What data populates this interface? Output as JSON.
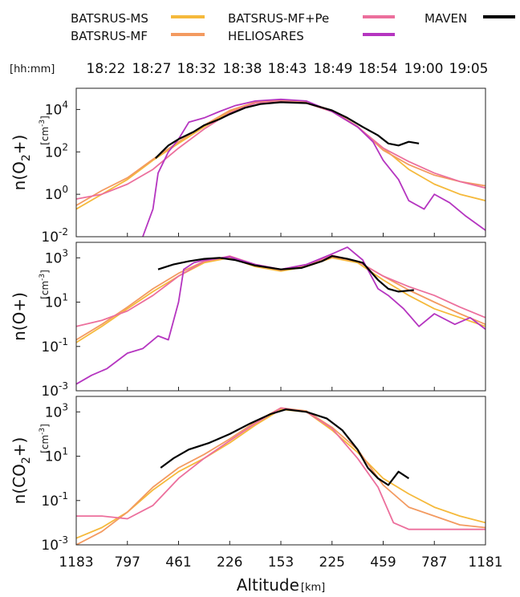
{
  "chart_data": {
    "type": "line",
    "legend": {
      "placement": "top",
      "entries": [
        {
          "name": "BATSRUS-MS",
          "color": "#f5b93b"
        },
        {
          "name": "BATSRUS-MF",
          "color": "#f39a60"
        },
        {
          "name": "BATSRUS-MF+Pe",
          "color": "#ec6f9c"
        },
        {
          "name": "HELIOSARES",
          "color": "#b535c0"
        },
        {
          "name": "MAVEN",
          "color": "#000000"
        }
      ]
    },
    "time_axis": {
      "label": "[hh:mm]",
      "ticks": [
        "18:22",
        "18:27",
        "18:32",
        "18:38",
        "18:43",
        "18:49",
        "18:54",
        "19:00",
        "19:05"
      ]
    },
    "x_axis": {
      "label": "Altitude",
      "unit": "[km]",
      "ticks": [
        "1183",
        "797",
        "461",
        "226",
        "153",
        "225",
        "459",
        "787",
        "1181"
      ]
    },
    "yscale": "log",
    "panels": [
      {
        "ylabel_html": "n(O₂+)",
        "ylabel_parts": [
          "n(O",
          "2",
          "+)"
        ],
        "unit_parts": [
          "[cm",
          "-3",
          "]"
        ],
        "ylim": [
          0.01,
          100000
        ],
        "yticks": [
          {
            "value": 0.01,
            "base": "10",
            "exp": "-2"
          },
          {
            "value": 1,
            "base": "10",
            "exp": "0"
          },
          {
            "value": 100,
            "base": "10",
            "exp": "2"
          },
          {
            "value": 10000,
            "base": "10",
            "exp": "4"
          }
        ],
        "series": [
          {
            "name": "BATSRUS-MS",
            "x": [
              0,
              0.5,
              1,
              1.5,
              2,
              2.5,
              3,
              3.5,
              4,
              4.5,
              5,
              5.5,
              6,
              6.5,
              7,
              7.5,
              8
            ],
            "y": [
              0.2,
              1,
              5,
              40,
              250,
              1500,
              8000,
              20000,
              25000,
              20000,
              8000,
              1500,
              150,
              15,
              3,
              1,
              0.5
            ]
          },
          {
            "name": "BATSRUS-MF",
            "x": [
              0,
              0.5,
              1,
              1.5,
              2,
              2.5,
              3,
              3.5,
              4,
              4.5,
              5,
              5.5,
              6,
              6.5,
              7,
              7.5,
              8
            ],
            "y": [
              0.3,
              1.5,
              6,
              45,
              300,
              1800,
              9000,
              22000,
              27000,
              22000,
              9000,
              1600,
              120,
              25,
              8,
              4,
              2.5
            ]
          },
          {
            "name": "BATSRUS-MF+Pe",
            "x": [
              0,
              0.5,
              1,
              1.5,
              2,
              2.5,
              3,
              3.5,
              4,
              4.5,
              5,
              5.5,
              6,
              6.5,
              7,
              7.5,
              8
            ],
            "y": [
              0.6,
              1,
              3,
              15,
              150,
              1200,
              7000,
              20000,
              24000,
              20000,
              8000,
              1500,
              150,
              35,
              10,
              4,
              2
            ]
          },
          {
            "name": "HELIOSARES",
            "x": [
              1.3,
              1.5,
              1.6,
              1.8,
              2.0,
              2.2,
              2.5,
              2.8,
              3.1,
              3.5,
              4.0,
              4.5,
              5.0,
              5.5,
              5.8,
              6.0,
              6.3,
              6.5,
              6.8,
              7.0,
              7.3,
              7.6,
              8.0
            ],
            "y": [
              0.01,
              0.2,
              10,
              100,
              400,
              2500,
              4000,
              8000,
              15000,
              25000,
              30000,
              25000,
              8000,
              1500,
              300,
              40,
              5,
              0.5,
              0.2,
              1,
              0.4,
              0.1,
              0.02
            ]
          },
          {
            "name": "MAVEN",
            "x": [
              1.55,
              1.8,
              2.0,
              2.3,
              2.5,
              2.8,
              3.0,
              3.3,
              3.6,
              4.0,
              4.5,
              5.0,
              5.3,
              5.6,
              5.9,
              6.1,
              6.3,
              6.5,
              6.7
            ],
            "y": [
              50,
              200,
              400,
              900,
              1800,
              3500,
              6000,
              12000,
              18000,
              22000,
              20000,
              9000,
              4000,
              1500,
              600,
              250,
              200,
              300,
              250
            ]
          }
        ]
      },
      {
        "ylabel_html": "n(O+)",
        "ylabel_parts": [
          "n(O+)",
          "",
          ""
        ],
        "unit_parts": [
          "[cm",
          "-3",
          "]"
        ],
        "ylim": [
          0.001,
          5000
        ],
        "yticks": [
          {
            "value": 0.001,
            "base": "10",
            "exp": "-3"
          },
          {
            "value": 0.1,
            "base": "10",
            "exp": "-1"
          },
          {
            "value": 10,
            "base": "10",
            "exp": "1"
          },
          {
            "value": 1000,
            "base": "10",
            "exp": "3"
          }
        ],
        "series": [
          {
            "name": "BATSRUS-MS",
            "x": [
              0,
              0.5,
              1,
              1.5,
              2,
              2.5,
              3,
              3.5,
              4,
              4.5,
              5,
              5.5,
              6,
              6.5,
              7,
              7.5,
              8
            ],
            "y": [
              0.15,
              0.8,
              5,
              30,
              150,
              600,
              1000,
              400,
              250,
              400,
              1000,
              600,
              100,
              20,
              5,
              2,
              0.8
            ]
          },
          {
            "name": "BATSRUS-MF",
            "x": [
              0,
              0.5,
              1,
              1.5,
              2,
              2.5,
              3,
              3.5,
              4,
              4.5,
              5,
              5.5,
              6,
              6.5,
              7,
              7.5,
              8
            ],
            "y": [
              0.2,
              1,
              6,
              40,
              200,
              700,
              1100,
              450,
              280,
              450,
              1100,
              700,
              150,
              35,
              10,
              3,
              1
            ]
          },
          {
            "name": "BATSRUS-MF+Pe",
            "x": [
              0,
              0.5,
              1,
              1.5,
              2,
              2.5,
              3,
              3.5,
              4,
              4.5,
              5,
              5.5,
              6,
              6.5,
              7,
              7.5,
              8
            ],
            "y": [
              0.8,
              1.5,
              4,
              20,
              150,
              700,
              1200,
              500,
              300,
              500,
              1300,
              700,
              150,
              50,
              20,
              6,
              2
            ]
          },
          {
            "name": "HELIOSARES",
            "x": [
              0,
              0.3,
              0.6,
              1,
              1.3,
              1.6,
              1.8,
              2.0,
              2.1,
              2.3,
              2.5,
              3.0,
              3.5,
              4.0,
              4.5,
              5.0,
              5.3,
              5.6,
              5.9,
              6.1,
              6.4,
              6.7,
              7.0,
              7.4,
              7.7,
              8.0
            ],
            "y": [
              0.002,
              0.005,
              0.01,
              0.05,
              0.08,
              0.3,
              0.2,
              10,
              300,
              600,
              800,
              1100,
              500,
              300,
              500,
              1500,
              3000,
              800,
              40,
              20,
              5,
              0.8,
              3,
              1,
              2,
              0.6
            ]
          },
          {
            "name": "MAVEN",
            "x": [
              1.6,
              1.9,
              2.2,
              2.5,
              2.8,
              3.1,
              3.5,
              4.0,
              4.4,
              4.8,
              5.0,
              5.3,
              5.6,
              5.9,
              6.1,
              6.3,
              6.6
            ],
            "y": [
              300,
              500,
              700,
              900,
              1000,
              800,
              450,
              300,
              350,
              700,
              1200,
              900,
              600,
              100,
              40,
              30,
              35
            ]
          }
        ]
      },
      {
        "ylabel_html": "n(CO₂+)",
        "ylabel_parts": [
          "n(CO",
          "2",
          "+)"
        ],
        "unit_parts": [
          "[cm",
          "-3",
          "]"
        ],
        "ylim": [
          0.001,
          5000
        ],
        "yticks": [
          {
            "value": 0.001,
            "base": "10",
            "exp": "-3"
          },
          {
            "value": 0.1,
            "base": "10",
            "exp": "-1"
          },
          {
            "value": 10,
            "base": "10",
            "exp": "1"
          },
          {
            "value": 1000,
            "base": "10",
            "exp": "3"
          }
        ],
        "series": [
          {
            "name": "BATSRUS-MS",
            "x": [
              0,
              0.5,
              1,
              1.5,
              2,
              2.5,
              3,
              3.5,
              4,
              4.5,
              5,
              5.5,
              6,
              6.5,
              7,
              7.5,
              8
            ],
            "y": [
              0.002,
              0.006,
              0.03,
              0.3,
              2,
              8,
              40,
              250,
              1300,
              1000,
              150,
              15,
              1,
              0.2,
              0.05,
              0.02,
              0.01
            ]
          },
          {
            "name": "BATSRUS-MF",
            "x": [
              0,
              0.5,
              1,
              1.5,
              2,
              2.5,
              3,
              3.5,
              4,
              4.5,
              5,
              5.5,
              6,
              6.5,
              7,
              7.5,
              8
            ],
            "y": [
              0.001,
              0.004,
              0.03,
              0.4,
              3,
              12,
              60,
              350,
              1500,
              1100,
              200,
              20,
              0.5,
              0.05,
              0.02,
              0.008,
              0.006
            ]
          },
          {
            "name": "BATSRUS-MF+Pe",
            "x": [
              0,
              0.5,
              1,
              1.5,
              2,
              2.5,
              3,
              3.5,
              4,
              4.5,
              5,
              5.5,
              5.9,
              6.2,
              6.5,
              7,
              7.5,
              8
            ],
            "y": [
              0.02,
              0.02,
              0.015,
              0.06,
              1,
              8,
              50,
              300,
              1500,
              1000,
              180,
              8,
              0.4,
              0.01,
              0.005,
              0.005,
              0.005,
              0.005
            ]
          },
          {
            "name": "MAVEN",
            "x": [
              1.65,
              1.9,
              2.2,
              2.6,
              3.0,
              3.4,
              3.8,
              4.1,
              4.5,
              4.9,
              5.2,
              5.5,
              5.7,
              5.9,
              6.1,
              6.3,
              6.5
            ],
            "y": [
              3,
              8,
              20,
              40,
              100,
              300,
              800,
              1300,
              1000,
              500,
              150,
              20,
              3,
              1,
              0.5,
              2,
              1
            ]
          }
        ]
      }
    ]
  }
}
